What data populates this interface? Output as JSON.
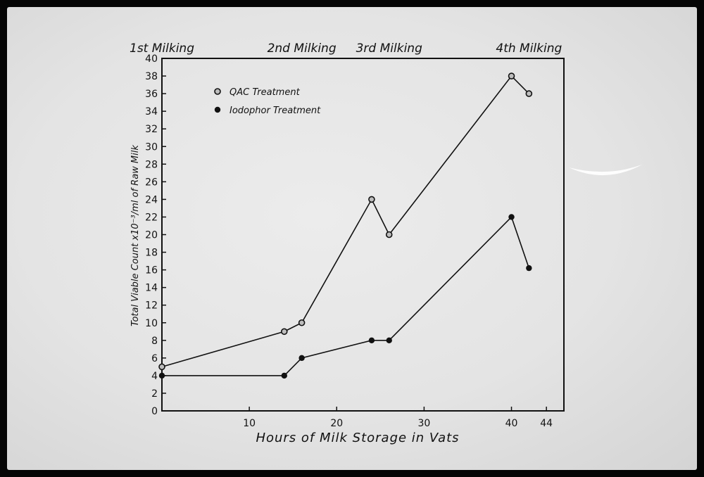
{
  "chart_data": {
    "type": "line",
    "xlabel": "Hours of Milk Storage in Vats",
    "ylabel": "Total Viable Count x10⁻³/ml of Raw Milk",
    "xlim": [
      0,
      46
    ],
    "ylim": [
      0,
      40
    ],
    "x_ticks": [
      10,
      20,
      30,
      40,
      44
    ],
    "y_ticks": [
      0,
      2,
      4,
      6,
      8,
      10,
      12,
      14,
      16,
      18,
      20,
      22,
      24,
      26,
      28,
      30,
      32,
      34,
      36,
      38,
      40
    ],
    "grid": false,
    "legend_position": "top-left",
    "top_annotations": [
      {
        "label": "1st Milking",
        "x": 0
      },
      {
        "label": "2nd Milking",
        "x": 16
      },
      {
        "label": "3rd Milking",
        "x": 26
      },
      {
        "label": "4th Milking",
        "x": 42
      }
    ],
    "series": [
      {
        "name": "QAC Treatment",
        "marker": "open-circle",
        "x": [
          0,
          14,
          16,
          24,
          26,
          40,
          42
        ],
        "y": [
          5,
          9,
          10,
          24,
          20,
          38,
          36
        ]
      },
      {
        "name": "Iodophor Treatment",
        "marker": "filled-circle",
        "x": [
          0,
          14,
          16,
          24,
          26,
          40,
          42
        ],
        "y": [
          4,
          4,
          6,
          8,
          8,
          22,
          16.2
        ]
      }
    ]
  }
}
